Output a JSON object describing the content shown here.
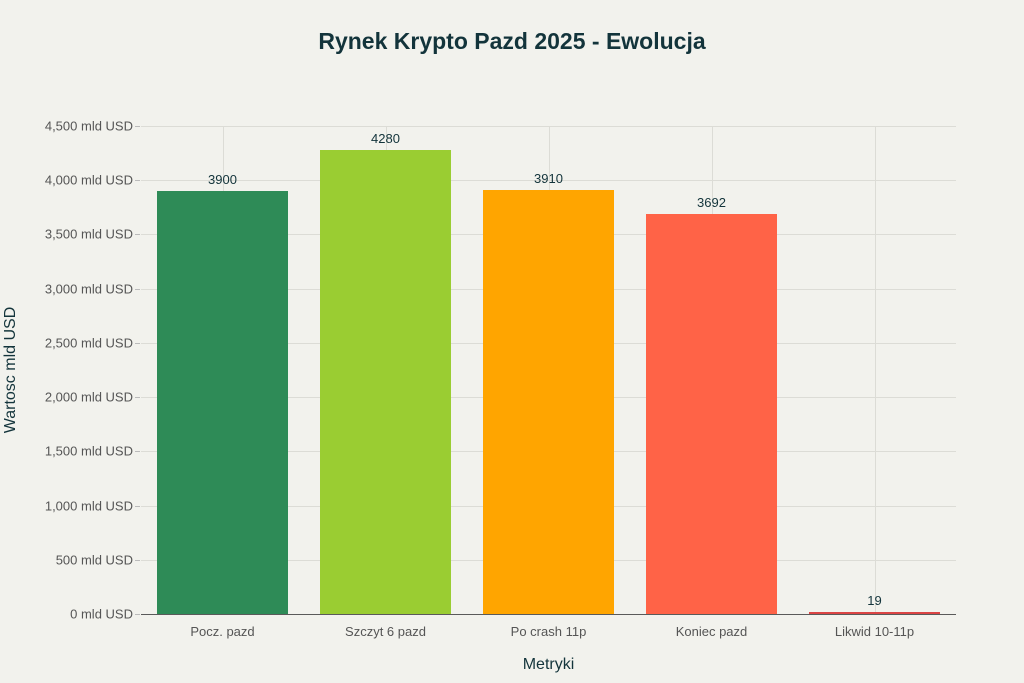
{
  "chart_data": {
    "type": "bar",
    "title": "Rynek Krypto Pazd 2025 - Ewolucja",
    "xlabel": "Metryki",
    "ylabel": "Wartosc mld USD",
    "categories": [
      "Pocz. pazd",
      "Szczyt 6 pazd",
      "Po crash 11p",
      "Koniec pazd",
      "Likwid 10-11p"
    ],
    "values": [
      3900,
      4280,
      3910,
      3692,
      19
    ],
    "data_labels": [
      "3900",
      "4280",
      "3910",
      "3692",
      "19"
    ],
    "colors": [
      "#2e8b57",
      "#9acd32",
      "#ffa500",
      "#ff6347",
      "#db4545"
    ],
    "ylim": [
      0,
      4500
    ],
    "yticks": [
      0,
      500,
      1000,
      1500,
      2000,
      2500,
      3000,
      3500,
      4000,
      4500
    ],
    "ytick_labels": [
      "0 mld USD",
      "500 mld USD",
      "1,000 mld USD",
      "1,500 mld USD",
      "2,000 mld USD",
      "2,500 mld USD",
      "3,000 mld USD",
      "3,500 mld USD",
      "4,000 mld USD",
      "4,500 mld USD"
    ],
    "grid": true,
    "legend": null
  }
}
